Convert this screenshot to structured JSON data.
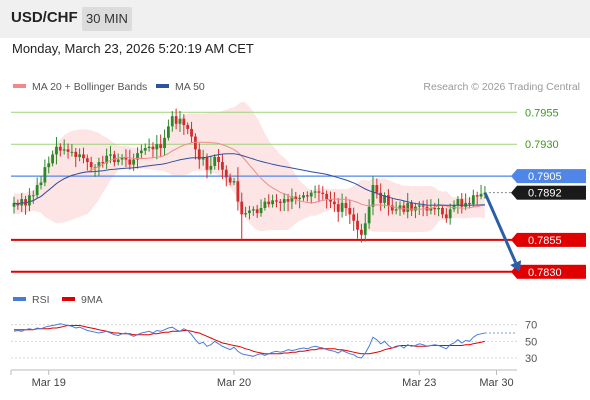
{
  "header": {
    "symbol": "USD/CHF",
    "timeframe": "30 MIN",
    "datetime": "Monday, March 23, 2026 5:20:19 AM CET"
  },
  "colors": {
    "candle_up": "#2a8a2a",
    "candle_down": "#d42b2b",
    "ma20": "#f08a8a",
    "bollinger_fill": "#fde0e0",
    "ma50": "#3050a0",
    "resistance": "#9fd27a",
    "pivot": "#4f86e8",
    "support": "#e00000",
    "arrow": "#2a5fa8",
    "rsi": "#4a7ad8",
    "rsi_ma": "#e00000"
  },
  "chart_data": [
    {
      "type": "candlestick",
      "legend": [
        {
          "label": "MA 20 + Bollinger Bands",
          "color": "#f08a8a"
        },
        {
          "label": "MA 50",
          "color": "#3050a0"
        }
      ],
      "legend_placement": "top-left",
      "watermark": "Research © 2026 Trading Central",
      "ylim": [
        0.7822,
        0.7967
      ],
      "x_ticks": [
        {
          "label": "Mar 19",
          "index": 9
        },
        {
          "label": "Mar 20",
          "index": 57
        },
        {
          "label": "Mar 23",
          "index": 105
        },
        {
          "label": "Mar 30",
          "index": 125
        }
      ],
      "levels": [
        {
          "label": "0.7955",
          "value": 0.7955,
          "kind": "resistance"
        },
        {
          "label": "0.7930",
          "value": 0.793,
          "kind": "resistance"
        },
        {
          "label": "0.7905",
          "value": 0.7905,
          "kind": "pivot"
        },
        {
          "label": "0.7892",
          "value": 0.7892,
          "kind": "last"
        },
        {
          "label": "0.7855",
          "value": 0.7855,
          "kind": "support"
        },
        {
          "label": "0.7830",
          "value": 0.783,
          "kind": "support"
        }
      ],
      "forecast": {
        "from": {
          "index": 122,
          "value": 0.7892
        },
        "to": {
          "index": 131,
          "value": 0.783
        }
      },
      "closes": [
        0.7884,
        0.7882,
        0.7887,
        0.7882,
        0.789,
        0.789,
        0.7898,
        0.79,
        0.7912,
        0.7915,
        0.7922,
        0.7928,
        0.7925,
        0.7926,
        0.7924,
        0.7924,
        0.792,
        0.7922,
        0.7919,
        0.7916,
        0.7912,
        0.7912,
        0.7916,
        0.7915,
        0.7921,
        0.7922,
        0.7916,
        0.7918,
        0.792,
        0.7918,
        0.7914,
        0.7918,
        0.7923,
        0.7925,
        0.7927,
        0.7928,
        0.7926,
        0.793,
        0.7927,
        0.7935,
        0.7944,
        0.7952,
        0.7946,
        0.795,
        0.7945,
        0.7942,
        0.7936,
        0.7926,
        0.7918,
        0.792,
        0.791,
        0.7913,
        0.792,
        0.7916,
        0.791,
        0.7904,
        0.79,
        0.7901,
        0.7885,
        0.7875,
        0.7876,
        0.7878,
        0.7879,
        0.7876,
        0.788,
        0.7885,
        0.7883,
        0.7886,
        0.7885,
        0.7884,
        0.7887,
        0.7885,
        0.7889,
        0.7887,
        0.7888,
        0.789,
        0.7889,
        0.7892,
        0.7893,
        0.7892,
        0.7891,
        0.7887,
        0.7885,
        0.7883,
        0.7877,
        0.7884,
        0.788,
        0.7875,
        0.787,
        0.7863,
        0.7859,
        0.7868,
        0.7881,
        0.7898,
        0.7892,
        0.7884,
        0.789,
        0.7882,
        0.7878,
        0.7879,
        0.7882,
        0.7877,
        0.7884,
        0.7878,
        0.7881,
        0.7882,
        0.7881,
        0.7878,
        0.788,
        0.7879,
        0.788,
        0.7875,
        0.7872,
        0.7879,
        0.7882,
        0.7887,
        0.7881,
        0.7884,
        0.7883,
        0.789,
        0.7889,
        0.7891,
        0.7892
      ]
    },
    {
      "type": "line",
      "legend": [
        {
          "label": "RSI",
          "color": "#4a7ad8"
        },
        {
          "label": "9MA",
          "color": "#e00000"
        }
      ],
      "legend_placement": "top-left",
      "ylim": [
        18,
        90
      ],
      "y_ticks": [
        70,
        50,
        30
      ],
      "series": [
        {
          "name": "RSI",
          "values": [
            62,
            63,
            62,
            64,
            65,
            64,
            66,
            65,
            67,
            68,
            69,
            70,
            71,
            70,
            69,
            68,
            66,
            67,
            65,
            63,
            62,
            61,
            60,
            61,
            62,
            60,
            58,
            57,
            59,
            60,
            58,
            56,
            58,
            60,
            61,
            62,
            60,
            63,
            62,
            64,
            66,
            67,
            64,
            62,
            65,
            63,
            58,
            52,
            47,
            49,
            44,
            46,
            50,
            47,
            44,
            42,
            40,
            43,
            38,
            35,
            34,
            33,
            32,
            34,
            35,
            33,
            35,
            37,
            38,
            37,
            38,
            40,
            39,
            40,
            41,
            42,
            41,
            43,
            44,
            43,
            42,
            40,
            39,
            38,
            36,
            39,
            37,
            35,
            34,
            31,
            30,
            36,
            44,
            55,
            52,
            47,
            50,
            45,
            42,
            43,
            45,
            42,
            46,
            44,
            45,
            47,
            46,
            44,
            45,
            46,
            45,
            43,
            41,
            46,
            48,
            52,
            48,
            51,
            50,
            55,
            58,
            59,
            60
          ]
        },
        {
          "name": "9MA",
          "values": [
            64,
            64,
            64,
            64,
            64,
            64,
            65,
            65,
            65,
            65,
            66,
            66,
            67,
            68,
            69,
            69,
            69,
            69,
            68,
            67,
            66,
            65,
            64,
            63,
            62,
            61,
            60,
            60,
            59,
            59,
            59,
            58,
            58,
            58,
            58,
            58,
            59,
            59,
            60,
            61,
            61,
            62,
            62,
            62,
            63,
            63,
            62,
            61,
            60,
            58,
            56,
            54,
            52,
            50,
            48,
            47,
            46,
            45,
            44,
            43,
            41,
            40,
            38,
            37,
            36,
            35,
            35,
            35,
            35,
            35,
            36,
            36,
            37,
            37,
            38,
            38,
            39,
            40,
            40,
            41,
            41,
            41,
            41,
            41,
            40,
            40,
            39,
            38,
            37,
            36,
            35,
            35,
            35,
            36,
            37,
            38,
            40,
            41,
            42,
            44,
            45,
            45,
            45,
            45,
            44,
            44,
            44,
            44,
            45,
            45,
            45,
            45,
            45,
            45,
            45,
            45,
            45,
            46,
            46,
            47,
            48,
            49,
            50
          ]
        }
      ]
    }
  ]
}
